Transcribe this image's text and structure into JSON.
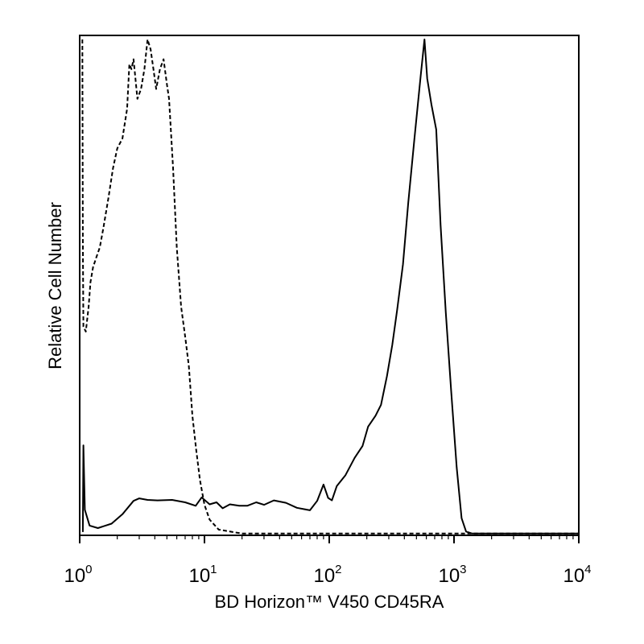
{
  "chart_data": {
    "type": "line",
    "xlabel": "BD Horizon™ V450 CD45RA",
    "ylabel": "Relative Cell Number",
    "x_scale": "log",
    "xlim": [
      1,
      10000
    ],
    "ylim": [
      0,
      100
    ],
    "grid": false,
    "y_tick_labels_shown": false,
    "x_ticks": [
      {
        "value": 1,
        "base": "10",
        "exp": "0"
      },
      {
        "value": 10,
        "base": "10",
        "exp": "1"
      },
      {
        "value": 100,
        "base": "10",
        "exp": "2"
      },
      {
        "value": 1000,
        "base": "10",
        "exp": "3"
      },
      {
        "value": 10000,
        "base": "10",
        "exp": "4"
      }
    ],
    "series": [
      {
        "style": "dashed",
        "color": "#000000",
        "points": [
          [
            1.05,
            100
          ],
          [
            1.06,
            60
          ],
          [
            1.07,
            42
          ],
          [
            1.12,
            41
          ],
          [
            1.18,
            46
          ],
          [
            1.22,
            51
          ],
          [
            1.28,
            54
          ],
          [
            1.36,
            56
          ],
          [
            1.45,
            58
          ],
          [
            1.55,
            62
          ],
          [
            1.7,
            68
          ],
          [
            1.85,
            74
          ],
          [
            2.0,
            78
          ],
          [
            2.2,
            80
          ],
          [
            2.4,
            86
          ],
          [
            2.5,
            95
          ],
          [
            2.6,
            94
          ],
          [
            2.7,
            96
          ],
          [
            2.9,
            88
          ],
          [
            3.1,
            90
          ],
          [
            3.3,
            94
          ],
          [
            3.5,
            100
          ],
          [
            3.7,
            98
          ],
          [
            3.9,
            94
          ],
          [
            4.1,
            90
          ],
          [
            4.4,
            94
          ],
          [
            4.7,
            96
          ],
          [
            5.0,
            91
          ],
          [
            5.2,
            88
          ],
          [
            5.6,
            74
          ],
          [
            6.0,
            58
          ],
          [
            6.5,
            46
          ],
          [
            7.0,
            40
          ],
          [
            7.5,
            34
          ],
          [
            8.0,
            24
          ],
          [
            8.6,
            17
          ],
          [
            9.2,
            11
          ],
          [
            10.0,
            6
          ],
          [
            11.0,
            3
          ],
          [
            13.0,
            1
          ],
          [
            20.0,
            0.2
          ],
          [
            10000,
            0.2
          ]
        ]
      },
      {
        "style": "solid",
        "color": "#000000",
        "points": [
          [
            1.06,
            0.5
          ],
          [
            1.07,
            18
          ],
          [
            1.1,
            5
          ],
          [
            1.2,
            1.8
          ],
          [
            1.4,
            1.3
          ],
          [
            1.8,
            2.2
          ],
          [
            2.2,
            4.1
          ],
          [
            2.7,
            6.8
          ],
          [
            3.0,
            7.3
          ],
          [
            3.5,
            7.0
          ],
          [
            4.2,
            6.9
          ],
          [
            5.5,
            7.0
          ],
          [
            7.0,
            6.5
          ],
          [
            8.5,
            5.8
          ],
          [
            9.5,
            7.5
          ],
          [
            11,
            6.1
          ],
          [
            12.5,
            6.5
          ],
          [
            14,
            5.3
          ],
          [
            16,
            6.1
          ],
          [
            19,
            5.8
          ],
          [
            22,
            5.8
          ],
          [
            26,
            6.5
          ],
          [
            30,
            6.0
          ],
          [
            36,
            6.9
          ],
          [
            45,
            6.4
          ],
          [
            55,
            5.4
          ],
          [
            70,
            4.9
          ],
          [
            80,
            6.8
          ],
          [
            90,
            10.1
          ],
          [
            98,
            7.4
          ],
          [
            105,
            6.9
          ],
          [
            115,
            9.8
          ],
          [
            135,
            12.0
          ],
          [
            160,
            15.5
          ],
          [
            185,
            17.9
          ],
          [
            205,
            21.8
          ],
          [
            235,
            24.0
          ],
          [
            260,
            26.2
          ],
          [
            290,
            32.0
          ],
          [
            320,
            38.3
          ],
          [
            350,
            45.3
          ],
          [
            390,
            54.6
          ],
          [
            430,
            67.1
          ],
          [
            480,
            79.6
          ],
          [
            540,
            92.5
          ],
          [
            580,
            100
          ],
          [
            610,
            92.1
          ],
          [
            660,
            86.8
          ],
          [
            720,
            81.8
          ],
          [
            780,
            62.5
          ],
          [
            860,
            44.8
          ],
          [
            950,
            28.9
          ],
          [
            1050,
            13.6
          ],
          [
            1150,
            3.3
          ],
          [
            1250,
            0.6
          ],
          [
            1400,
            0.2
          ],
          [
            10000,
            0.2
          ]
        ]
      }
    ]
  }
}
